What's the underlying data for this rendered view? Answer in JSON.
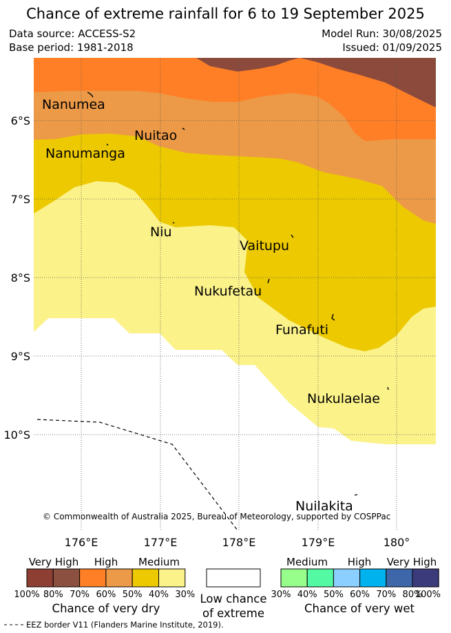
{
  "header": {
    "title": "Chance of extreme rainfall for 6 to 19 September 2025",
    "data_source": "Data source: ACCESS-S2",
    "base_period": "Base period: 1981-2018",
    "model_run": "Model Run: 30/08/2025",
    "issued": "Issued: 01/09/2025"
  },
  "map": {
    "lat_labels": [
      "6°S",
      "7°S",
      "8°S",
      "9°S",
      "10°S"
    ],
    "lon_labels": [
      "176°E",
      "177°E",
      "178°E",
      "179°E",
      "180°"
    ],
    "islands": [
      {
        "name": "Nanumea"
      },
      {
        "name": "Nuitao"
      },
      {
        "name": "Nanumanga"
      },
      {
        "name": "Niu"
      },
      {
        "name": "Vaitupu"
      },
      {
        "name": "Nukufetau"
      },
      {
        "name": "Funafuti"
      },
      {
        "name": "Nukulaelae"
      },
      {
        "name": "Nuilakita"
      }
    ],
    "copyright": "© Commonwealth of Australia 2025, Bureau of Meteorology, supported by COSPPac",
    "zone_colors": {
      "very_high_dry": "#8b4a3c",
      "high_dry": "#ff7f26",
      "high_dry_50": "#ec9a48",
      "medium_dry": "#ecc900",
      "medium_dry_30": "#fbf28a",
      "low": "#ffffff"
    }
  },
  "legend": {
    "dry": {
      "headers": [
        "Very High",
        "High",
        "Medium"
      ],
      "colors": [
        "#8e3f34",
        "#8b5040",
        "#ff7f26",
        "#ec9a48",
        "#ecc900",
        "#fbf28a"
      ],
      "ticks": [
        "100%",
        "80%",
        "70%",
        "60%",
        "50%",
        "40%",
        "30%"
      ],
      "caption": "Chance of very dry"
    },
    "low": {
      "caption_line1": "Low chance",
      "caption_line2": "of extreme"
    },
    "wet": {
      "headers": [
        "Medium",
        "High",
        "Very High"
      ],
      "colors": [
        "#97fd8b",
        "#53f9a3",
        "#8acfff",
        "#00b2ee",
        "#3d67a8",
        "#3b3b7b"
      ],
      "ticks": [
        "30%",
        "40%",
        "50%",
        "60%",
        "70%",
        "80%",
        "100%"
      ],
      "caption": "Chance of very wet"
    },
    "eez_note": "EEZ border V11 (Flanders Marine Institute, 2019)."
  }
}
